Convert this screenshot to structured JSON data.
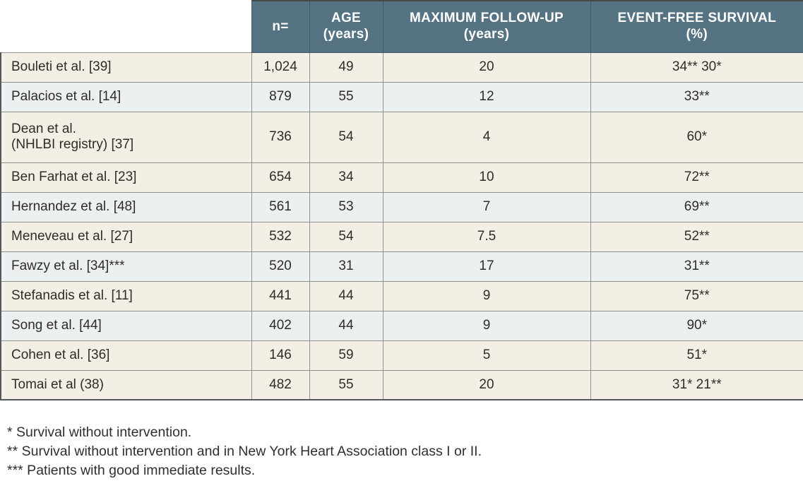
{
  "colors": {
    "header_bg": "#567383",
    "header_text": "#ffffff",
    "row_cream": "#f3efe5",
    "row_blue_gray": "#edf0f0",
    "grid_line": "#8f9190",
    "outer_border": "#55585a",
    "body_text": "#2d2d2b"
  },
  "table": {
    "columns": [
      {
        "label": "",
        "sublabel": ""
      },
      {
        "label": "n=",
        "sublabel": ""
      },
      {
        "label": "AGE",
        "sublabel": "(years)"
      },
      {
        "label": "MAXIMUM FOLLOW-UP",
        "sublabel": "(years)"
      },
      {
        "label": "EVENT-FREE SURVIVAL",
        "sublabel": "(%)"
      }
    ],
    "rows": [
      {
        "study": "Bouleti et al. [39]",
        "study_line2": "",
        "n": "1,024",
        "age": "49",
        "max_follow_up": "20",
        "event_free_survival": "34** 30*",
        "shade": "cream",
        "tall": false
      },
      {
        "study": "Palacios et al. [14]",
        "study_line2": "",
        "n": "879",
        "age": "55",
        "max_follow_up": "12",
        "event_free_survival": "33**",
        "shade": "blue",
        "tall": false
      },
      {
        "study": "Dean et al.",
        "study_line2": "(NHLBI registry) [37]",
        "n": "736",
        "age": "54",
        "max_follow_up": "4",
        "event_free_survival": "60*",
        "shade": "cream",
        "tall": true
      },
      {
        "study": "Ben Farhat et al. [23]",
        "study_line2": "",
        "n": "654",
        "age": "34",
        "max_follow_up": "10",
        "event_free_survival": "72**",
        "shade": "cream",
        "tall": false
      },
      {
        "study": "Hernandez et al. [48]",
        "study_line2": "",
        "n": "561",
        "age": "53",
        "max_follow_up": "7",
        "event_free_survival": "69**",
        "shade": "blue",
        "tall": false
      },
      {
        "study": "Meneveau et al. [27]",
        "study_line2": "",
        "n": "532",
        "age": "54",
        "max_follow_up": "7.5",
        "event_free_survival": "52**",
        "shade": "cream",
        "tall": false
      },
      {
        "study": "Fawzy et al. [34]***",
        "study_line2": "",
        "n": "520",
        "age": "31",
        "max_follow_up": "17",
        "event_free_survival": "31**",
        "shade": "blue",
        "tall": false
      },
      {
        "study": "Stefanadis et al. [11]",
        "study_line2": "",
        "n": "441",
        "age": "44",
        "max_follow_up": "9",
        "event_free_survival": "75**",
        "shade": "cream",
        "tall": false
      },
      {
        "study": "Song et al. [44]",
        "study_line2": "",
        "n": "402",
        "age": "44",
        "max_follow_up": "9",
        "event_free_survival": "90*",
        "shade": "blue",
        "tall": false
      },
      {
        "study": "Cohen et al. [36]",
        "study_line2": "",
        "n": "146",
        "age": "59",
        "max_follow_up": "5",
        "event_free_survival": "51*",
        "shade": "cream",
        "tall": false
      },
      {
        "study": "Tomai et al (38)",
        "study_line2": "",
        "n": "482",
        "age": "55",
        "max_follow_up": "20",
        "event_free_survival": "31* 21**",
        "shade": "cream",
        "tall": false
      }
    ]
  },
  "footnotes": [
    "* Survival without intervention.",
    "** Survival without intervention and in New York Heart Association class I or II.",
    "*** Patients with good immediate results."
  ]
}
